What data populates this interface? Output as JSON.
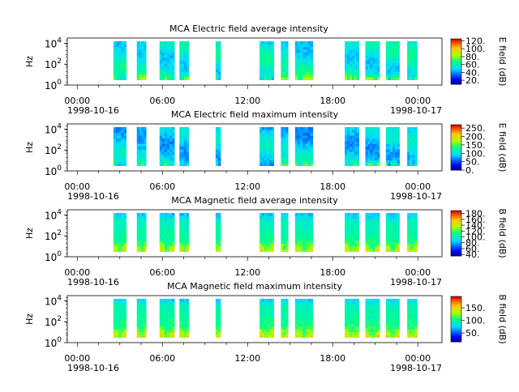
{
  "colors": {
    "axis": "#000000",
    "background": "#ffffff"
  },
  "chart_data": [
    {
      "type": "heatmap",
      "title": "MCA  Electric field average intensity",
      "ylabel": "Hz",
      "colorbar_label": "E field (dB)",
      "colorbar_ticks": [
        "20.",
        "40.",
        "60.",
        "80.",
        "100.",
        "120."
      ],
      "clim": [
        10,
        125
      ],
      "profile": "efield",
      "base_level": 0.4,
      "spots": 0.45,
      "x_tick_labels": [
        "00:00",
        "06:00",
        "12:00",
        "18:00",
        "00:00"
      ],
      "x_date_labels": [
        "1998-10-16",
        "1998-10-17"
      ],
      "y_tick_labels": [
        "10^0",
        "10^2",
        "10^4"
      ],
      "ylim_exponent": [
        0,
        4.5
      ],
      "x_hours": [
        0,
        6,
        12,
        18,
        24
      ],
      "xlim_hours": [
        -0.7,
        25.7
      ]
    },
    {
      "type": "heatmap",
      "title": "MCA  Electric field maximum intensity",
      "ylabel": "Hz",
      "colorbar_label": "E field (dB)",
      "colorbar_ticks": [
        "0.",
        "50.",
        "100.",
        "150.",
        "200.",
        "250."
      ],
      "clim": [
        0,
        270
      ],
      "profile": "efield",
      "base_level": 0.34,
      "spots": 0.28,
      "x_tick_labels": [
        "00:00",
        "06:00",
        "12:00",
        "18:00",
        "00:00"
      ],
      "x_date_labels": [
        "1998-10-16",
        "1998-10-17"
      ],
      "y_tick_labels": [
        "10^0",
        "10^2",
        "10^4"
      ],
      "ylim_exponent": [
        0,
        4.5
      ],
      "x_hours": [
        0,
        6,
        12,
        18,
        24
      ],
      "xlim_hours": [
        -0.7,
        25.7
      ]
    },
    {
      "type": "heatmap",
      "title": "MCA  Magnetic field average intensity",
      "ylabel": "Hz",
      "colorbar_label": "B field (dB)",
      "colorbar_ticks": [
        "40.",
        "60.",
        "80.",
        "100.",
        "120.",
        "140.",
        "160.",
        "180."
      ],
      "clim": [
        35,
        190
      ],
      "profile": "bfield",
      "base_level": 0.4,
      "spots": 0.1,
      "x_tick_labels": [
        "00:00",
        "06:00",
        "12:00",
        "18:00",
        "00:00"
      ],
      "x_date_labels": [
        "1998-10-16",
        "1998-10-17"
      ],
      "y_tick_labels": [
        "10^0",
        "10^2",
        "10^4"
      ],
      "ylim_exponent": [
        0,
        4.5
      ],
      "x_hours": [
        0,
        6,
        12,
        18,
        24
      ],
      "xlim_hours": [
        -0.7,
        25.7
      ]
    },
    {
      "type": "heatmap",
      "title": "MCA  Magnetic field maximum intensity",
      "ylabel": "Hz",
      "colorbar_label": "B field (dB)",
      "colorbar_ticks": [
        "50.",
        "100.",
        "150."
      ],
      "clim": [
        15,
        195
      ],
      "profile": "bfield",
      "base_level": 0.42,
      "spots": 0.1,
      "x_tick_labels": [
        "00:00",
        "06:00",
        "12:00",
        "18:00",
        "00:00"
      ],
      "x_date_labels": [
        "1998-10-16",
        "1998-10-17"
      ],
      "y_tick_labels": [
        "10^0",
        "10^2",
        "10^4"
      ],
      "ylim_exponent": [
        0,
        4.5
      ],
      "x_hours": [
        0,
        6,
        12,
        18,
        24
      ],
      "xlim_hours": [
        -0.7,
        25.7
      ]
    }
  ],
  "data_coverage_hours": [
    [
      2.55,
      3.45
    ],
    [
      4.2,
      4.85
    ],
    [
      5.8,
      6.85
    ],
    [
      7.2,
      7.85
    ],
    [
      9.75,
      10.1
    ],
    [
      12.85,
      13.85
    ],
    [
      14.35,
      14.85
    ],
    [
      15.35,
      16.6
    ],
    [
      18.85,
      19.85
    ],
    [
      20.3,
      21.3
    ],
    [
      21.75,
      22.7
    ],
    [
      23.25,
      23.95
    ]
  ]
}
